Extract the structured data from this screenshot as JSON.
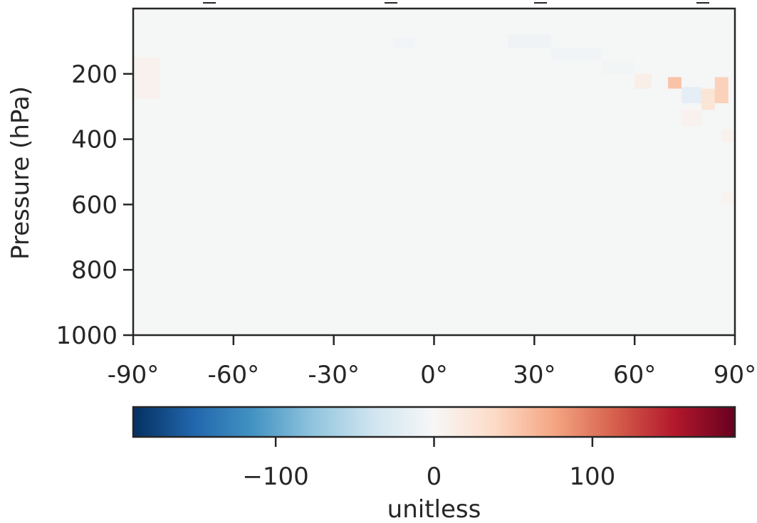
{
  "chart_data": {
    "type": "heatmap",
    "title": "",
    "xlabel": "",
    "ylabel": "Pressure (hPa)",
    "x_range": [
      -90,
      90
    ],
    "y_range": [
      1000,
      0
    ],
    "y_inverted": true,
    "x_ticks": [
      "-90°",
      "-60°",
      "-30°",
      "0°",
      "30°",
      "60°",
      "90°"
    ],
    "x_tick_values": [
      -90,
      -60,
      -30,
      0,
      30,
      60,
      90
    ],
    "y_ticks": [
      "200",
      "400",
      "600",
      "800",
      "1000"
    ],
    "y_tick_values": [
      200,
      400,
      600,
      800,
      1000
    ],
    "grid": false,
    "colormap": "RdBu_r",
    "background_value": 0,
    "anomalies": [
      {
        "lat": [
          -90,
          -82
        ],
        "p": [
          150,
          275
        ],
        "value": 8
      },
      {
        "lat": [
          -12,
          -6
        ],
        "p": [
          90,
          120
        ],
        "value": -6
      },
      {
        "lat": [
          22,
          35
        ],
        "p": [
          80,
          120
        ],
        "value": -8
      },
      {
        "lat": [
          35,
          50
        ],
        "p": [
          120,
          160
        ],
        "value": -6
      },
      {
        "lat": [
          50,
          60
        ],
        "p": [
          160,
          200
        ],
        "value": -5
      },
      {
        "lat": [
          60,
          65
        ],
        "p": [
          200,
          245
        ],
        "value": 12
      },
      {
        "lat": [
          70,
          74
        ],
        "p": [
          210,
          245
        ],
        "value": 55
      },
      {
        "lat": [
          74,
          80
        ],
        "p": [
          240,
          290
        ],
        "value": -18
      },
      {
        "lat": [
          80,
          84
        ],
        "p": [
          245,
          310
        ],
        "value": 25
      },
      {
        "lat": [
          84,
          88
        ],
        "p": [
          210,
          290
        ],
        "value": 45
      },
      {
        "lat": [
          74,
          80
        ],
        "p": [
          310,
          360
        ],
        "value": 8
      },
      {
        "lat": [
          86,
          90
        ],
        "p": [
          370,
          410
        ],
        "value": 8
      },
      {
        "lat": [
          86,
          90
        ],
        "p": [
          560,
          600
        ],
        "value": 6
      }
    ],
    "colorbar": {
      "label": "unitless",
      "range": [
        -190,
        190
      ],
      "ticks": [
        "−100",
        "0",
        "100"
      ],
      "tick_values": [
        -100,
        0,
        100
      ]
    }
  }
}
